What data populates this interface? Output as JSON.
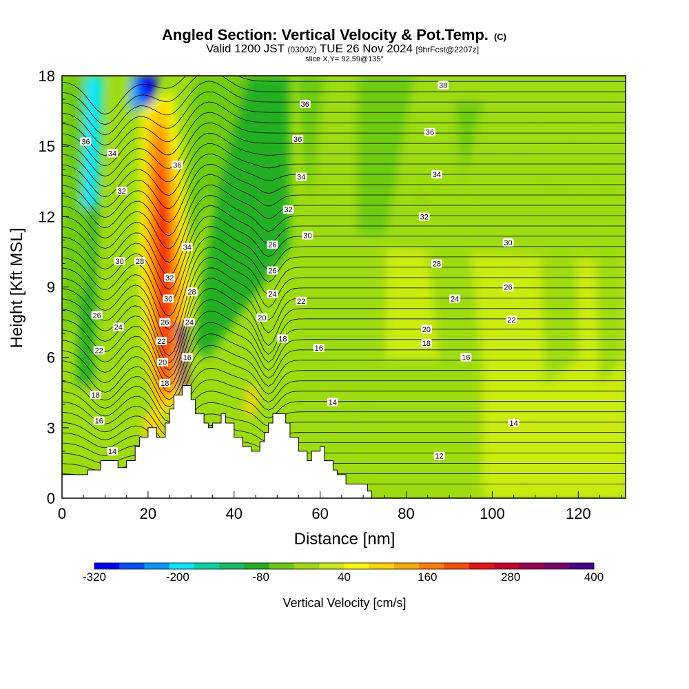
{
  "title": {
    "main": "Angled Section: Vertical Velocity & Pot.Temp.",
    "main_suffix": "(C)",
    "valid_prefix": "Valid 1200 JST",
    "valid_utc": "(0300Z)",
    "valid_date": "TUE 26 Nov 2024",
    "valid_fcst": "[9hrFcst@2207z]",
    "slice": "slice X,Y= 92,59@135°"
  },
  "chart_data": {
    "type": "heatmap",
    "xlabel": "Distance [nm]",
    "ylabel": "Height [Kft MSL]",
    "xlim": [
      0,
      131
    ],
    "ylim": [
      0,
      18
    ],
    "x_ticks": [
      "0",
      "20",
      "40",
      "60",
      "80",
      "100",
      "120"
    ],
    "y_ticks": [
      "0",
      "3",
      "6",
      "9",
      "12",
      "15",
      "18"
    ],
    "colorbar": {
      "label": "Vertical Velocity [cm/s]",
      "tick_labels": [
        "-320",
        "-200",
        "-80",
        "40",
        "160",
        "280",
        "400"
      ],
      "colors": [
        "#0000ff",
        "#0050ff",
        "#0098ff",
        "#00e8ff",
        "#00d6a4",
        "#10c060",
        "#20b020",
        "#6ccc10",
        "#9edc10",
        "#ccec10",
        "#f8f800",
        "#ffd400",
        "#ffaa00",
        "#ff7c00",
        "#ff4c00",
        "#f01010",
        "#c80030",
        "#a00050",
        "#7c0070",
        "#4c0090"
      ]
    },
    "terrain": [
      [
        0,
        1
      ],
      [
        6,
        1
      ],
      [
        6,
        1.2
      ],
      [
        9,
        1.2
      ],
      [
        9,
        1.6
      ],
      [
        13,
        1.6
      ],
      [
        13,
        1.3
      ],
      [
        15,
        1.3
      ],
      [
        15,
        1.6
      ],
      [
        17,
        1.6
      ],
      [
        17,
        2.2
      ],
      [
        18,
        2.2
      ],
      [
        18,
        2.6
      ],
      [
        20,
        2.6
      ],
      [
        20,
        3
      ],
      [
        22,
        3
      ],
      [
        22,
        2.6
      ],
      [
        24,
        2.6
      ],
      [
        24,
        3.2
      ],
      [
        25,
        3.2
      ],
      [
        25,
        3.8
      ],
      [
        26,
        3.8
      ],
      [
        26,
        4.4
      ],
      [
        28,
        4.4
      ],
      [
        28,
        4.8
      ],
      [
        30,
        4.8
      ],
      [
        30,
        4.2
      ],
      [
        31,
        4.2
      ],
      [
        31,
        3.6
      ],
      [
        33,
        3.6
      ],
      [
        33,
        3.2
      ],
      [
        34,
        3.2
      ],
      [
        34,
        3
      ],
      [
        35,
        3
      ],
      [
        35,
        3.2
      ],
      [
        37,
        3.2
      ],
      [
        37,
        3.6
      ],
      [
        38,
        3.6
      ],
      [
        38,
        3.2
      ],
      [
        40,
        3.2
      ],
      [
        40,
        2.6
      ],
      [
        42,
        2.6
      ],
      [
        42,
        2.2
      ],
      [
        44,
        2.2
      ],
      [
        44,
        2
      ],
      [
        46,
        2
      ],
      [
        46,
        2.4
      ],
      [
        47,
        2.4
      ],
      [
        47,
        2.8
      ],
      [
        48,
        2.8
      ],
      [
        48,
        3.2
      ],
      [
        49,
        3.2
      ],
      [
        49,
        3.6
      ],
      [
        52,
        3.6
      ],
      [
        52,
        3.2
      ],
      [
        53,
        3.2
      ],
      [
        53,
        2.6
      ],
      [
        55,
        2.6
      ],
      [
        55,
        2
      ],
      [
        57,
        2
      ],
      [
        57,
        1.6
      ],
      [
        58,
        1.6
      ],
      [
        58,
        2
      ],
      [
        60,
        2
      ],
      [
        60,
        2.2
      ],
      [
        61,
        2.2
      ],
      [
        61,
        1.6
      ],
      [
        63,
        1.6
      ],
      [
        63,
        1.2
      ],
      [
        64,
        1.2
      ],
      [
        64,
        1
      ],
      [
        66,
        1
      ],
      [
        66,
        0.6
      ],
      [
        71,
        0.6
      ],
      [
        71,
        0.3
      ],
      [
        72,
        0.3
      ],
      [
        72,
        0
      ],
      [
        131,
        0
      ]
    ],
    "theta_labels": [
      {
        "x": 5.5,
        "y": 15.2,
        "text": "36"
      },
      {
        "x": 11.7,
        "y": 14.7,
        "text": "34"
      },
      {
        "x": 13.9,
        "y": 13.1,
        "text": "32"
      },
      {
        "x": 13.4,
        "y": 10.1,
        "text": "30"
      },
      {
        "x": 18.1,
        "y": 10.1,
        "text": "28"
      },
      {
        "x": 8.1,
        "y": 7.8,
        "text": "26"
      },
      {
        "x": 13.1,
        "y": 7.3,
        "text": "24"
      },
      {
        "x": 8.6,
        "y": 6.3,
        "text": "22"
      },
      {
        "x": 7.8,
        "y": 4.4,
        "text": "18"
      },
      {
        "x": 8.6,
        "y": 3.3,
        "text": "16"
      },
      {
        "x": 11.7,
        "y": 2.0,
        "text": "14"
      },
      {
        "x": 26.8,
        "y": 14.2,
        "text": "36"
      },
      {
        "x": 25.0,
        "y": 9.4,
        "text": "32"
      },
      {
        "x": 24.7,
        "y": 8.5,
        "text": "30"
      },
      {
        "x": 23.9,
        "y": 7.5,
        "text": "26"
      },
      {
        "x": 23.1,
        "y": 6.7,
        "text": "22"
      },
      {
        "x": 23.4,
        "y": 5.8,
        "text": "20"
      },
      {
        "x": 23.9,
        "y": 4.9,
        "text": "18"
      },
      {
        "x": 29.1,
        "y": 10.7,
        "text": "34"
      },
      {
        "x": 30.2,
        "y": 8.8,
        "text": "28"
      },
      {
        "x": 29.6,
        "y": 7.5,
        "text": "24"
      },
      {
        "x": 29.1,
        "y": 6.0,
        "text": "16"
      },
      {
        "x": 56.5,
        "y": 16.8,
        "text": "36"
      },
      {
        "x": 54.8,
        "y": 15.3,
        "text": "36"
      },
      {
        "x": 55.6,
        "y": 13.7,
        "text": "34"
      },
      {
        "x": 52.6,
        "y": 12.3,
        "text": "32"
      },
      {
        "x": 57.1,
        "y": 11.2,
        "text": "30"
      },
      {
        "x": 48.9,
        "y": 10.8,
        "text": "26"
      },
      {
        "x": 48.9,
        "y": 9.7,
        "text": "26"
      },
      {
        "x": 48.9,
        "y": 8.7,
        "text": "24"
      },
      {
        "x": 46.5,
        "y": 7.7,
        "text": "20"
      },
      {
        "x": 51.3,
        "y": 6.8,
        "text": "18"
      },
      {
        "x": 55.6,
        "y": 8.4,
        "text": "22"
      },
      {
        "x": 59.7,
        "y": 6.4,
        "text": "16"
      },
      {
        "x": 62.9,
        "y": 4.1,
        "text": "14"
      },
      {
        "x": 88.6,
        "y": 17.6,
        "text": "38"
      },
      {
        "x": 85.5,
        "y": 15.6,
        "text": "36"
      },
      {
        "x": 87.1,
        "y": 13.8,
        "text": "34"
      },
      {
        "x": 84.2,
        "y": 12.0,
        "text": "32"
      },
      {
        "x": 103.7,
        "y": 10.9,
        "text": "30"
      },
      {
        "x": 87.1,
        "y": 10.0,
        "text": "28"
      },
      {
        "x": 103.7,
        "y": 9.0,
        "text": "26"
      },
      {
        "x": 91.3,
        "y": 8.5,
        "text": "24"
      },
      {
        "x": 104.5,
        "y": 7.6,
        "text": "22"
      },
      {
        "x": 84.7,
        "y": 7.2,
        "text": "20"
      },
      {
        "x": 84.7,
        "y": 6.6,
        "text": "18"
      },
      {
        "x": 93.9,
        "y": 6.0,
        "text": "16"
      },
      {
        "x": 105.0,
        "y": 3.2,
        "text": "14"
      },
      {
        "x": 87.7,
        "y": 1.8,
        "text": "12"
      }
    ]
  }
}
